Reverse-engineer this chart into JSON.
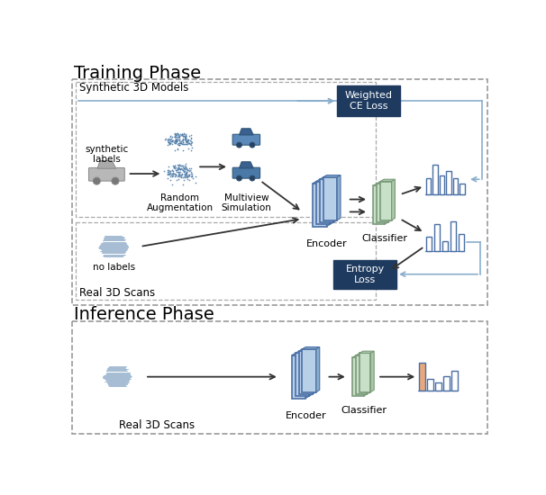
{
  "title_training": "Training Phase",
  "title_inference": "Inference Phase",
  "label_synthetic": "Synthetic 3D Models",
  "label_real_train": "Real 3D Scans",
  "label_real_infer": "Real 3D Scans",
  "label_synthetic_labels": "synthetic\nlabels",
  "label_no_labels": "no labels",
  "label_random_aug": "Random\nAugmentation",
  "label_multiview": "Multiview\nSimulation",
  "label_encoder": "Encoder",
  "label_classifier": "Classifier",
  "label_weighted_ce": "Weighted\nCE Loss",
  "label_entropy": "Entropy\nLoss",
  "bg_color": "#ffffff",
  "box_dark_color": "#1e3a5f",
  "box_dark_text": "#ffffff",
  "enc_face": "#b8cfe8",
  "enc_edge": "#4a6fa5",
  "enc_side": "#8aaecc",
  "cls_face": "#c8dfc8",
  "cls_edge": "#7a9a7a",
  "cls_side": "#a8c8a8",
  "bar_outline": "#4a6fa5",
  "bar_orange": "#e8a87c",
  "arrow_dark": "#333333",
  "arrow_light": "#8aaecc",
  "dash_color": "#aaaaaa",
  "outer_dash": "#999999"
}
